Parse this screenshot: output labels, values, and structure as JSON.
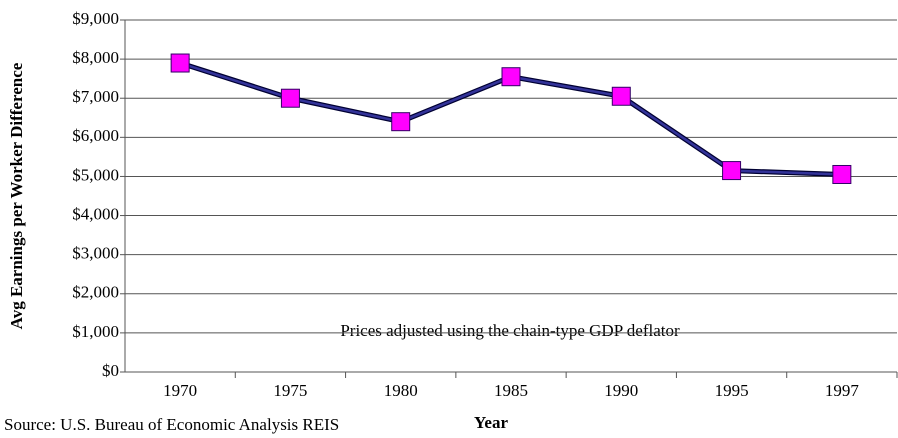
{
  "chart_data": {
    "type": "line",
    "y_label": "Avg Earnings per Worker Difference",
    "x_label": "Year",
    "annotation": "Prices adjusted using the chain-type GDP deflator",
    "source": "Source:  U.S. Bureau of Economic Analysis REIS",
    "categories": [
      "1970",
      "1975",
      "1980",
      "1985",
      "1990",
      "1995",
      "1997"
    ],
    "series": [
      {
        "name": "Avg Earnings per Worker Difference",
        "color": "#333399",
        "marker_color": "#ff00ff",
        "values": [
          7900,
          7000,
          6400,
          7550,
          7050,
          5150,
          5050
        ]
      }
    ],
    "ylim": [
      0,
      9000
    ],
    "yticks": [
      {
        "value": 0,
        "label": "$0"
      },
      {
        "value": 1000,
        "label": "$1,000"
      },
      {
        "value": 2000,
        "label": "$2,000"
      },
      {
        "value": 3000,
        "label": "$3,000"
      },
      {
        "value": 4000,
        "label": "$4,000"
      },
      {
        "value": 5000,
        "label": "$5,000"
      },
      {
        "value": 6000,
        "label": "$6,000"
      },
      {
        "value": 7000,
        "label": "$7,000"
      },
      {
        "value": 8000,
        "label": "$8,000"
      },
      {
        "value": 9000,
        "label": "$9,000"
      }
    ],
    "grid": true
  }
}
